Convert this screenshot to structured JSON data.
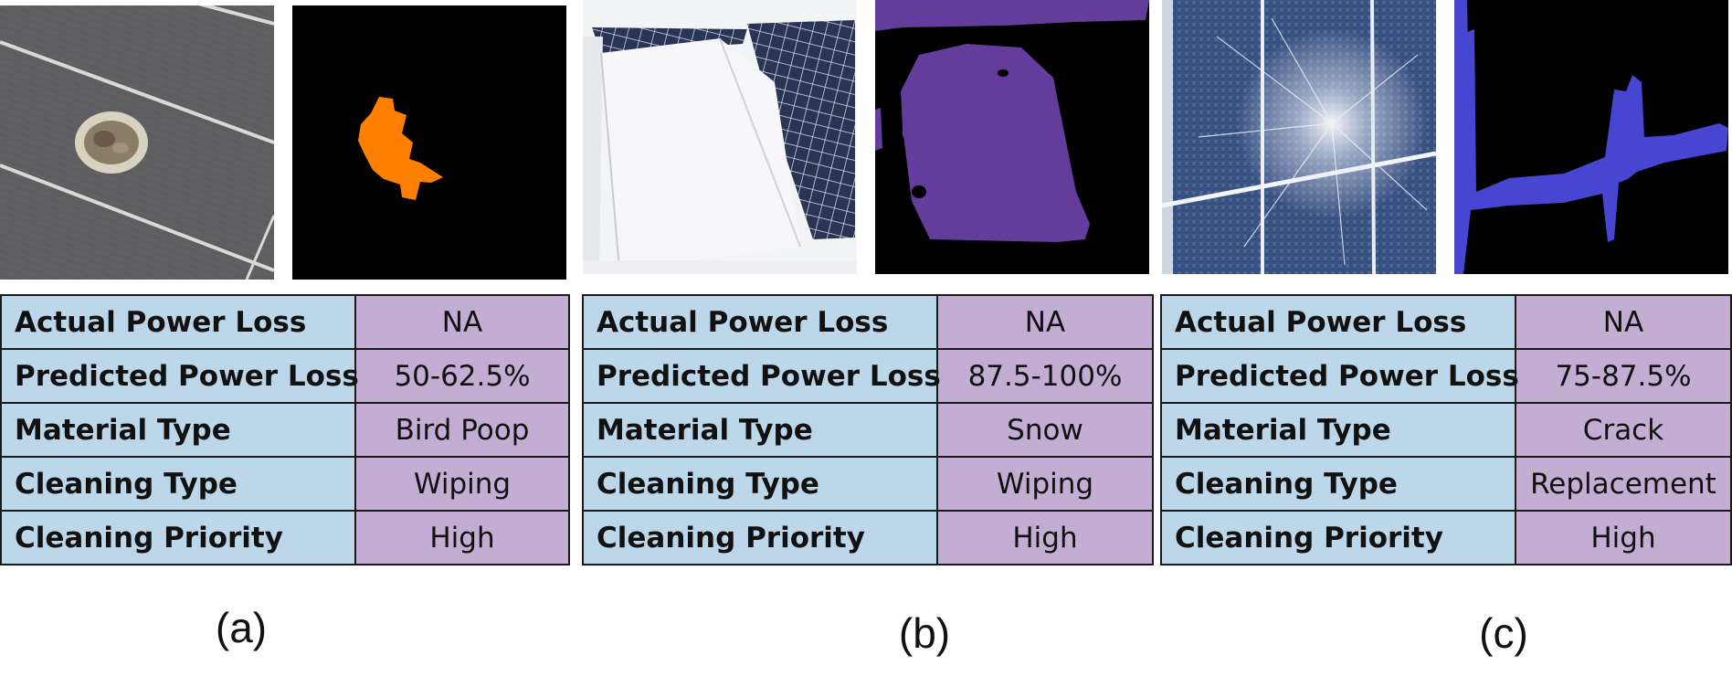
{
  "colors": {
    "key_cell_bg": "#bcd7ea",
    "value_cell_bg": "#c3add3",
    "mask_a": "#ff8000",
    "mask_b": "#643c9c",
    "mask_c": "#4646d2"
  },
  "panels": [
    {
      "caption": "(a)",
      "photo_icon": "bird-droppings-on-solar-panel-photo",
      "mask_icon": "orange-segmentation-mask",
      "rows": [
        {
          "key": "Actual Power Loss",
          "value": "NA"
        },
        {
          "key": "Predicted Power Loss",
          "value": "50-62.5%"
        },
        {
          "key": "Material Type",
          "value": "Bird Poop"
        },
        {
          "key": "Cleaning Type",
          "value": "Wiping"
        },
        {
          "key": "Cleaning Priority",
          "value": "High"
        }
      ]
    },
    {
      "caption": "(b)",
      "photo_icon": "snow-covered-solar-panel-photo",
      "mask_icon": "purple-segmentation-mask",
      "rows": [
        {
          "key": "Actual Power Loss",
          "value": "NA"
        },
        {
          "key": "Predicted Power Loss",
          "value": "87.5-100%"
        },
        {
          "key": "Material Type",
          "value": "Snow"
        },
        {
          "key": "Cleaning Type",
          "value": "Wiping"
        },
        {
          "key": "Cleaning Priority",
          "value": "High"
        }
      ]
    },
    {
      "caption": "(c)",
      "photo_icon": "cracked-solar-panel-photo",
      "mask_icon": "blue-segmentation-mask",
      "rows": [
        {
          "key": "Actual Power Loss",
          "value": "NA"
        },
        {
          "key": "Predicted Power Loss",
          "value": "75-87.5%"
        },
        {
          "key": "Material Type",
          "value": "Crack"
        },
        {
          "key": "Cleaning Type",
          "value": "Replacement"
        },
        {
          "key": "Cleaning Priority",
          "value": "High"
        }
      ]
    }
  ]
}
